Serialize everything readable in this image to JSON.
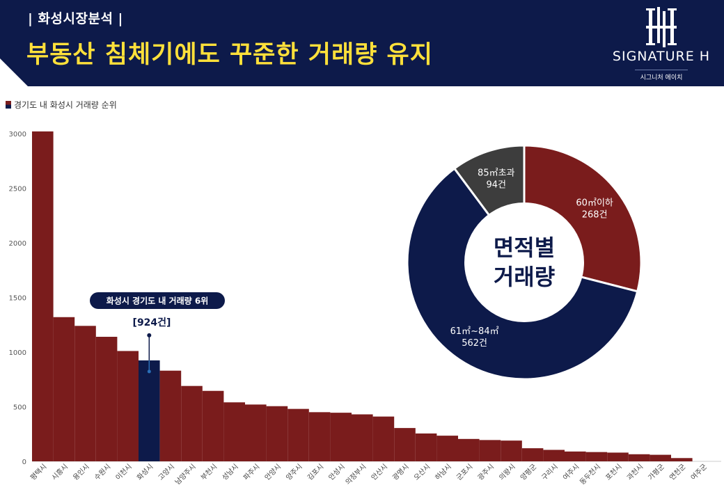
{
  "header": {
    "section_tag": "| 화성시장분석 |",
    "headline": "부동산 침체기에도 꾸준한 거래량 유지",
    "logo_brand": "SIGNATURE H",
    "logo_sub": "시그니처 에이치"
  },
  "colors": {
    "header_bg": "#0d1a4a",
    "headline": "#ffe03a",
    "bar": "#7a1c1c",
    "highlight_bar": "#0d1a4a",
    "donut_small": "#3d3d3d"
  },
  "chart_data": [
    {
      "type": "bar",
      "title": "경기도 내 화성시 거래량 순위",
      "categories": [
        "평택시",
        "시흥시",
        "용인시",
        "수원시",
        "이천시",
        "화성시",
        "고양시",
        "남양주시",
        "부천시",
        "성남시",
        "파주시",
        "안양시",
        "양주시",
        "김포시",
        "안성시",
        "의정부시",
        "안산시",
        "광명시",
        "오산시",
        "하남시",
        "군포시",
        "광주시",
        "의왕시",
        "양평군",
        "구리시",
        "여주시",
        "동두천시",
        "포천시",
        "과천시",
        "가평군",
        "연천군",
        "여주군"
      ],
      "values": [
        3020,
        1320,
        1240,
        1140,
        1010,
        924,
        830,
        690,
        645,
        540,
        520,
        505,
        480,
        450,
        445,
        430,
        410,
        305,
        255,
        235,
        205,
        195,
        190,
        120,
        105,
        90,
        85,
        80,
        65,
        60,
        30,
        0
      ],
      "y_ticks": [
        0,
        500,
        1000,
        1500,
        2000,
        2500,
        3000
      ],
      "ylim": [
        0,
        3000
      ],
      "highlight_index": 5,
      "annotation": {
        "label": "화성시 경기도 내 거래량 6위",
        "value_label": "[924건]"
      }
    },
    {
      "type": "pie",
      "center_label": [
        "면적별",
        "거래량"
      ],
      "slices": [
        {
          "label": "60㎡이하",
          "value": 268,
          "value_label": "268건",
          "color": "#7a1c1c"
        },
        {
          "label": "61㎡~84㎡",
          "value": 562,
          "value_label": "562건",
          "color": "#0d1a4a"
        },
        {
          "label": "85㎡초과",
          "value": 94,
          "value_label": "94건",
          "color": "#3d3d3d"
        }
      ]
    }
  ]
}
